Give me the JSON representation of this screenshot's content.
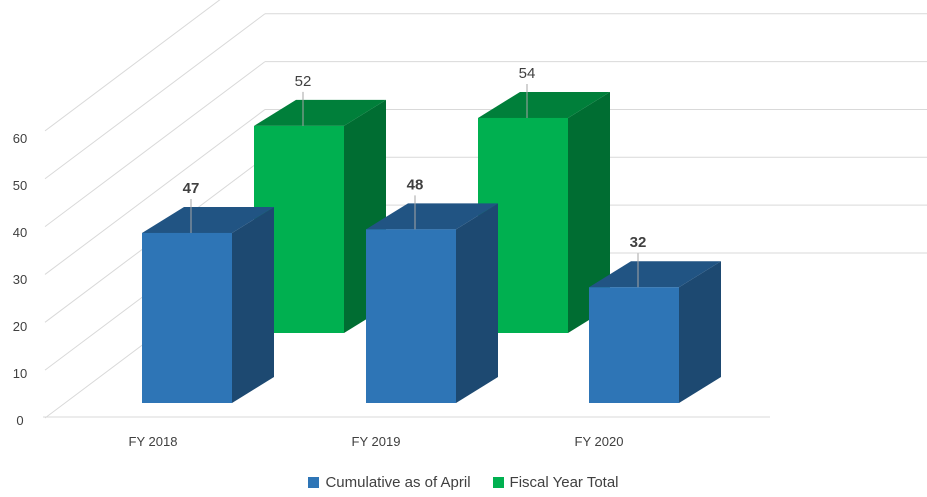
{
  "chart_data": {
    "type": "bar",
    "style": "3d-clustered-column",
    "categories": [
      "FY 2018",
      "FY 2019",
      "FY 2020"
    ],
    "series": [
      {
        "name": "Cumulative as of April",
        "values": [
          47,
          48,
          32
        ],
        "color": "#2E75B6",
        "label_bold": true
      },
      {
        "name": "Fiscal Year Total",
        "values": [
          52,
          54,
          null
        ],
        "color": "#00B050",
        "label_bold": false
      }
    ],
    "y_ticks": [
      0,
      10,
      20,
      30,
      40,
      50,
      60
    ],
    "ylim": [
      0,
      60
    ],
    "grid": true,
    "legend_position": "bottom"
  }
}
